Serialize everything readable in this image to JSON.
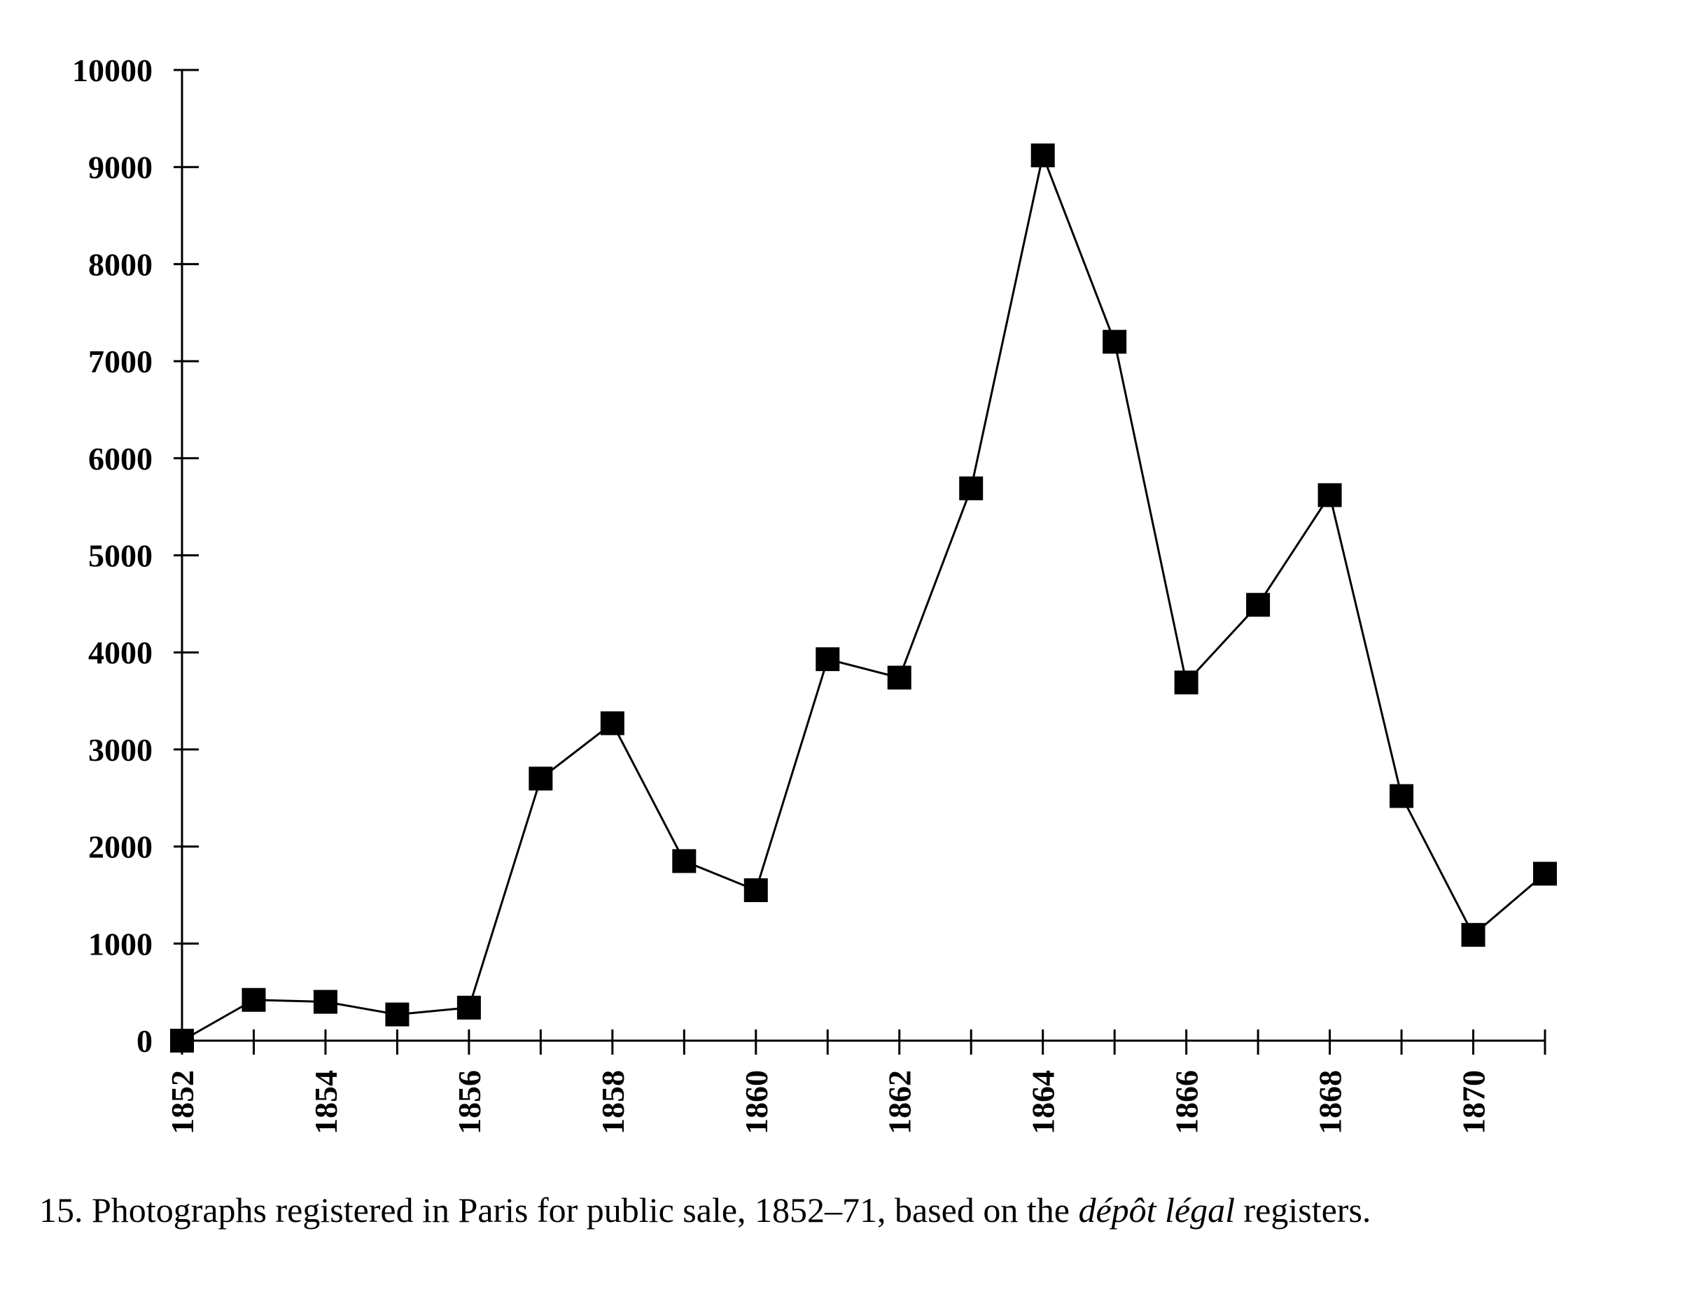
{
  "caption": {
    "number": "15.",
    "text_before": "Photographs registered in Paris for public sale, 1852–71, based on the",
    "italic": "dépôt légal",
    "text_after": "registers."
  },
  "chart_data": {
    "type": "line",
    "title": "",
    "xlabel": "",
    "ylabel": "",
    "marker": "square",
    "grid": false,
    "ylim": [
      0,
      10000
    ],
    "xlim": [
      1852,
      1871
    ],
    "yticks": [
      0,
      1000,
      2000,
      3000,
      4000,
      5000,
      6000,
      7000,
      8000,
      9000,
      10000
    ],
    "ytick_labels": [
      "0",
      "1000",
      "2000",
      "3000",
      "4000",
      "5000",
      "6000",
      "7000",
      "8000",
      "9000",
      "10000"
    ],
    "xticks": [
      1852,
      1853,
      1854,
      1855,
      1856,
      1857,
      1858,
      1859,
      1860,
      1861,
      1862,
      1863,
      1864,
      1865,
      1866,
      1867,
      1868,
      1869,
      1870,
      1871
    ],
    "xtick_labels": [
      "1852",
      "1854",
      "1856",
      "1858",
      "1860",
      "1862",
      "1864",
      "1866",
      "1868",
      "1870"
    ],
    "xtick_label_values": [
      1852,
      1854,
      1856,
      1858,
      1860,
      1862,
      1864,
      1866,
      1868,
      1870
    ],
    "series": [
      {
        "x": [
          1852,
          1853,
          1854,
          1855,
          1856,
          1857,
          1858,
          1859,
          1860,
          1861,
          1862,
          1863,
          1864,
          1865,
          1866,
          1867,
          1868,
          1869,
          1870,
          1871
        ],
        "values": [
          0,
          420,
          400,
          270,
          340,
          2700,
          3270,
          1850,
          1550,
          3930,
          3740,
          5690,
          9120,
          7200,
          3690,
          4490,
          5620,
          2520,
          1090,
          1720
        ]
      }
    ]
  }
}
